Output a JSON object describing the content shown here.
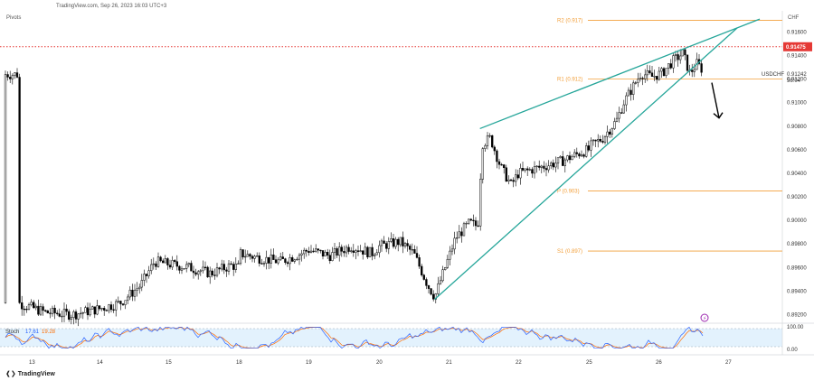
{
  "header": {
    "source": "TradingView.com, Sep 26, 2023 16:03 UTC+3",
    "indicator": "Pivots",
    "currency": "CHF"
  },
  "footer": {
    "brand": "TradingView"
  },
  "chart_data": {
    "type": "candlestick",
    "symbol": "USDCHF",
    "countdown": "56:04",
    "last_price": "0.91242",
    "y_ticks": [
      "0.91600",
      "0.91400",
      "0.91200",
      "0.91000",
      "0.90800",
      "0.90600",
      "0.90400",
      "0.90200",
      "0.90000",
      "0.89800",
      "0.89600",
      "0.89400",
      "0.89200"
    ],
    "x_ticks": [
      "13",
      "14",
      "15",
      "18",
      "19",
      "20",
      "21",
      "22",
      "25",
      "26",
      "27"
    ],
    "ylim": [
      0.8915,
      0.9178
    ],
    "pivot_levels": [
      {
        "label": "R2 (0.917)",
        "value": 0.917
      },
      {
        "label": "R1 (0.912)",
        "value": 0.912
      },
      {
        "label": "P (0.903)",
        "value": 0.9025
      },
      {
        "label": "S1 (0.897)",
        "value": 0.8974
      }
    ],
    "resistance_line": {
      "value": "0.91475",
      "level": 0.91475,
      "color": "#e53935"
    },
    "rising_wedge": {
      "upper": [
        [
          21.45,
          0.9078
        ],
        [
          26.95,
          0.9171
        ]
      ],
      "lower": [
        [
          20.8,
          0.8933
        ],
        [
          26.95,
          0.9168
        ]
      ]
    },
    "breakdown_arrow": {
      "from": [
        26.3,
        0.9117
      ],
      "to": [
        26.45,
        0.9087
      ]
    },
    "stochastic": {
      "label": "Stoch",
      "k": "17.61",
      "d": "19.28",
      "levels": [
        "100.00",
        "0.00"
      ],
      "k_color": "#2962ff",
      "d_color": "#ff6d00"
    },
    "colors": {
      "wedge": "#26a69a",
      "pivot": "#f29f3a",
      "candle": "#000000"
    }
  }
}
